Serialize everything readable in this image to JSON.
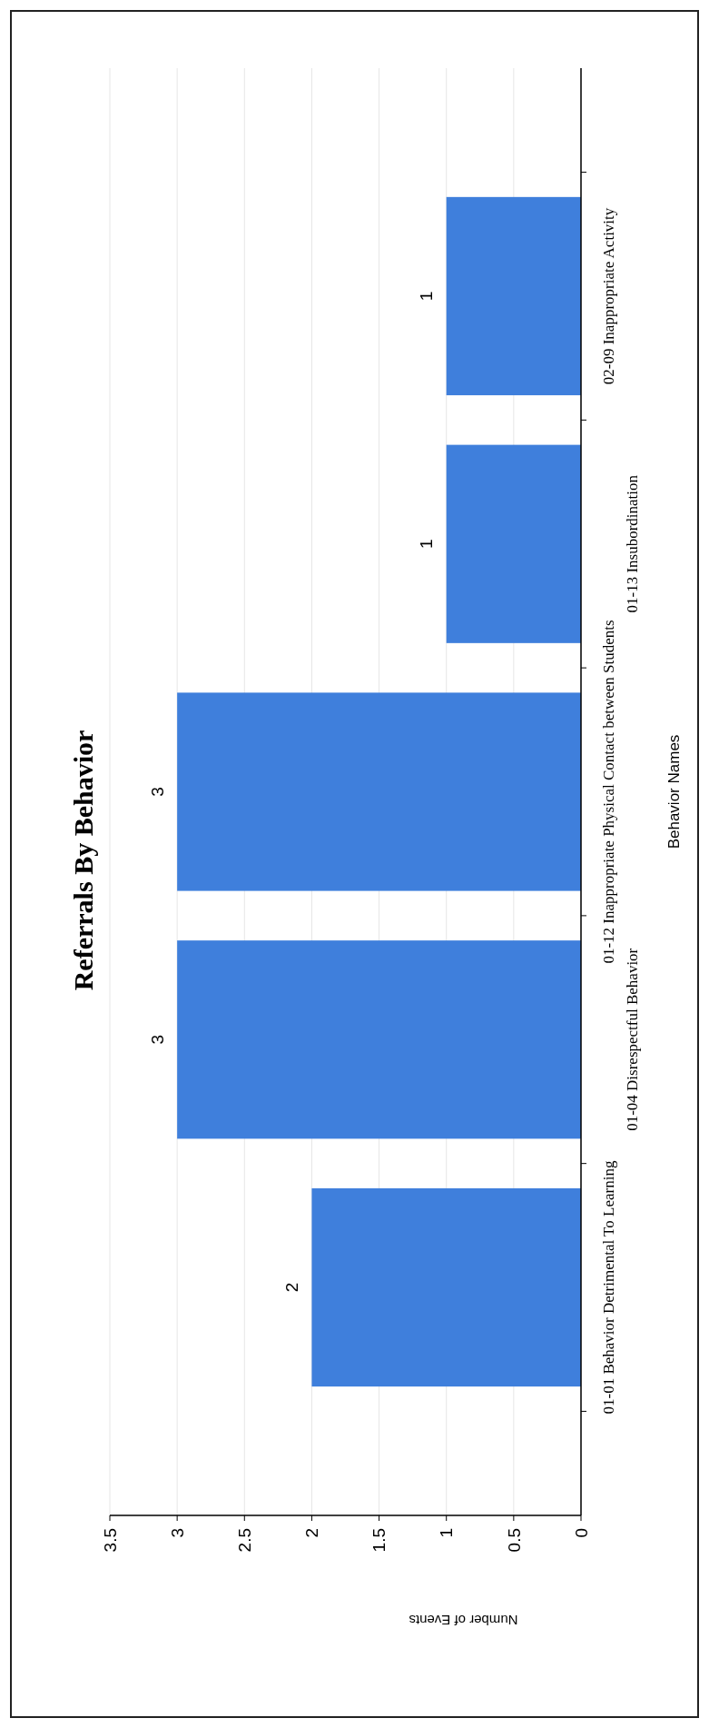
{
  "chart_data": {
    "type": "bar",
    "orientation": "horizontal",
    "title": "Referrals By Behavior",
    "xlabel": "Number of Events",
    "ylabel": "Behavior Names",
    "categories": [
      "02-09 Inappropriate Activity",
      "01-13 Insubordination",
      "01-12 Inappropriate Physical Contact between Students",
      "01-04 Disrespectful Behavior",
      "01-01 Behavior Detrimental To Learning"
    ],
    "values": [
      1,
      1,
      3,
      3,
      2
    ],
    "color": "#3f7fdc",
    "xlim": [
      3.5,
      0
    ],
    "xticks": [
      0,
      0.5,
      1,
      1.5,
      2,
      2.5,
      3,
      3.5
    ],
    "grid": "x",
    "data_labels": true
  }
}
